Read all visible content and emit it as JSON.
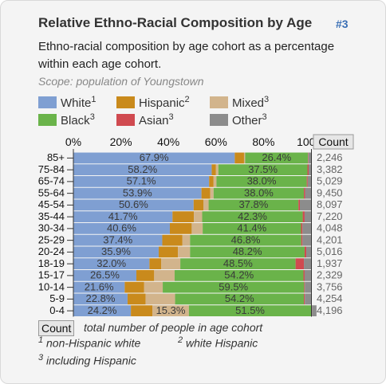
{
  "header": {
    "title": "Relative Ethno-Racial Composition by Age",
    "badge": "#3",
    "subtitle": "Ethno-racial composition by age cohort as a percentage within each age cohort.",
    "scope": "Scope: population of Youngstown"
  },
  "legend": [
    {
      "label": "White",
      "note": "1",
      "color": "#7f9fd2"
    },
    {
      "label": "Hispanic",
      "note": "2",
      "color": "#c98a1c"
    },
    {
      "label": "Mixed",
      "note": "3",
      "color": "#d2b48c"
    },
    {
      "label": "Black",
      "note": "3",
      "color": "#6ab34a"
    },
    {
      "label": "Asian",
      "note": "3",
      "color": "#d04a50"
    },
    {
      "label": "Other",
      "note": "3",
      "color": "#8c8c8c"
    }
  ],
  "chart_data": {
    "type": "bar",
    "orientation": "horizontal",
    "stacked": true,
    "xlim": [
      0,
      100
    ],
    "x_ticks": [
      "0%",
      "20%",
      "40%",
      "60%",
      "80%",
      "100%"
    ],
    "count_header": "Count",
    "categories": [
      "85+",
      "75-84",
      "65-74",
      "55-64",
      "45-54",
      "35-44",
      "30-34",
      "25-29",
      "20-24",
      "18-19",
      "15-17",
      "10-14",
      "5-9",
      "0-4"
    ],
    "counts": [
      "2,246",
      "3,382",
      "5,029",
      "9,450",
      "8,097",
      "7,220",
      "4,048",
      "4,201",
      "5,016",
      "1,937",
      "2,329",
      "3,756",
      "4,254",
      "4,196"
    ],
    "series": [
      {
        "name": "White",
        "color": "#7f9fd2",
        "values": [
          67.9,
          58.2,
          57.1,
          53.9,
          50.6,
          41.7,
          40.6,
          37.4,
          35.9,
          32.0,
          26.5,
          21.6,
          22.8,
          24.2
        ]
      },
      {
        "name": "Hispanic",
        "color": "#c98a1c",
        "values": [
          3.9,
          1.8,
          1.9,
          3.7,
          4.1,
          9.0,
          9.2,
          8.5,
          8.1,
          5.0,
          7.5,
          8.2,
          7.6,
          9.1
        ]
      },
      {
        "name": "Mixed",
        "color": "#d2b48c",
        "values": [
          0.5,
          1.0,
          1.2,
          1.4,
          2.2,
          3.5,
          4.6,
          3.2,
          5.1,
          8.0,
          8.6,
          7.8,
          12.4,
          15.3
        ]
      },
      {
        "name": "Black",
        "color": "#6ab34a",
        "values": [
          26.4,
          37.5,
          38.0,
          38.0,
          37.8,
          42.3,
          41.4,
          46.8,
          48.2,
          48.5,
          54.2,
          59.5,
          54.2,
          51.5
        ]
      },
      {
        "name": "Asian",
        "color": "#d04a50",
        "values": [
          0.2,
          0.5,
          0.4,
          0.5,
          0.6,
          0.8,
          0.6,
          0.5,
          0.7,
          3.5,
          0.5,
          0.3,
          0.4,
          0.3
        ]
      },
      {
        "name": "Other",
        "color": "#8c8c8c",
        "values": [
          1.1,
          1.0,
          1.4,
          2.5,
          4.7,
          2.7,
          3.6,
          3.6,
          2.0,
          3.0,
          2.7,
          2.6,
          2.6,
          1.9
        ]
      }
    ],
    "value_labels": [
      [
        "67.9%",
        "26.4%"
      ],
      [
        "58.2%",
        "37.5%"
      ],
      [
        "57.1%",
        "38.0%"
      ],
      [
        "53.9%",
        "38.0%"
      ],
      [
        "50.6%",
        "37.8%"
      ],
      [
        "41.7%",
        "42.3%"
      ],
      [
        "40.6%",
        "41.4%"
      ],
      [
        "37.4%",
        "46.8%"
      ],
      [
        "35.9%",
        "48.2%"
      ],
      [
        "32.0%",
        "48.5%"
      ],
      [
        "26.5%",
        "54.2%"
      ],
      [
        "21.6%",
        "59.5%"
      ],
      [
        "22.8%",
        "54.2%"
      ],
      [
        "24.2%",
        "15.3%",
        "51.5%"
      ]
    ]
  },
  "footnotes": {
    "count_label": "Count",
    "count_desc": "total number of people in age cohort",
    "note1_mark": "1",
    "note1": "non-Hispanic white",
    "note2_mark": "2",
    "note2": "white Hispanic",
    "note3_mark": "3",
    "note3": "including Hispanic"
  }
}
